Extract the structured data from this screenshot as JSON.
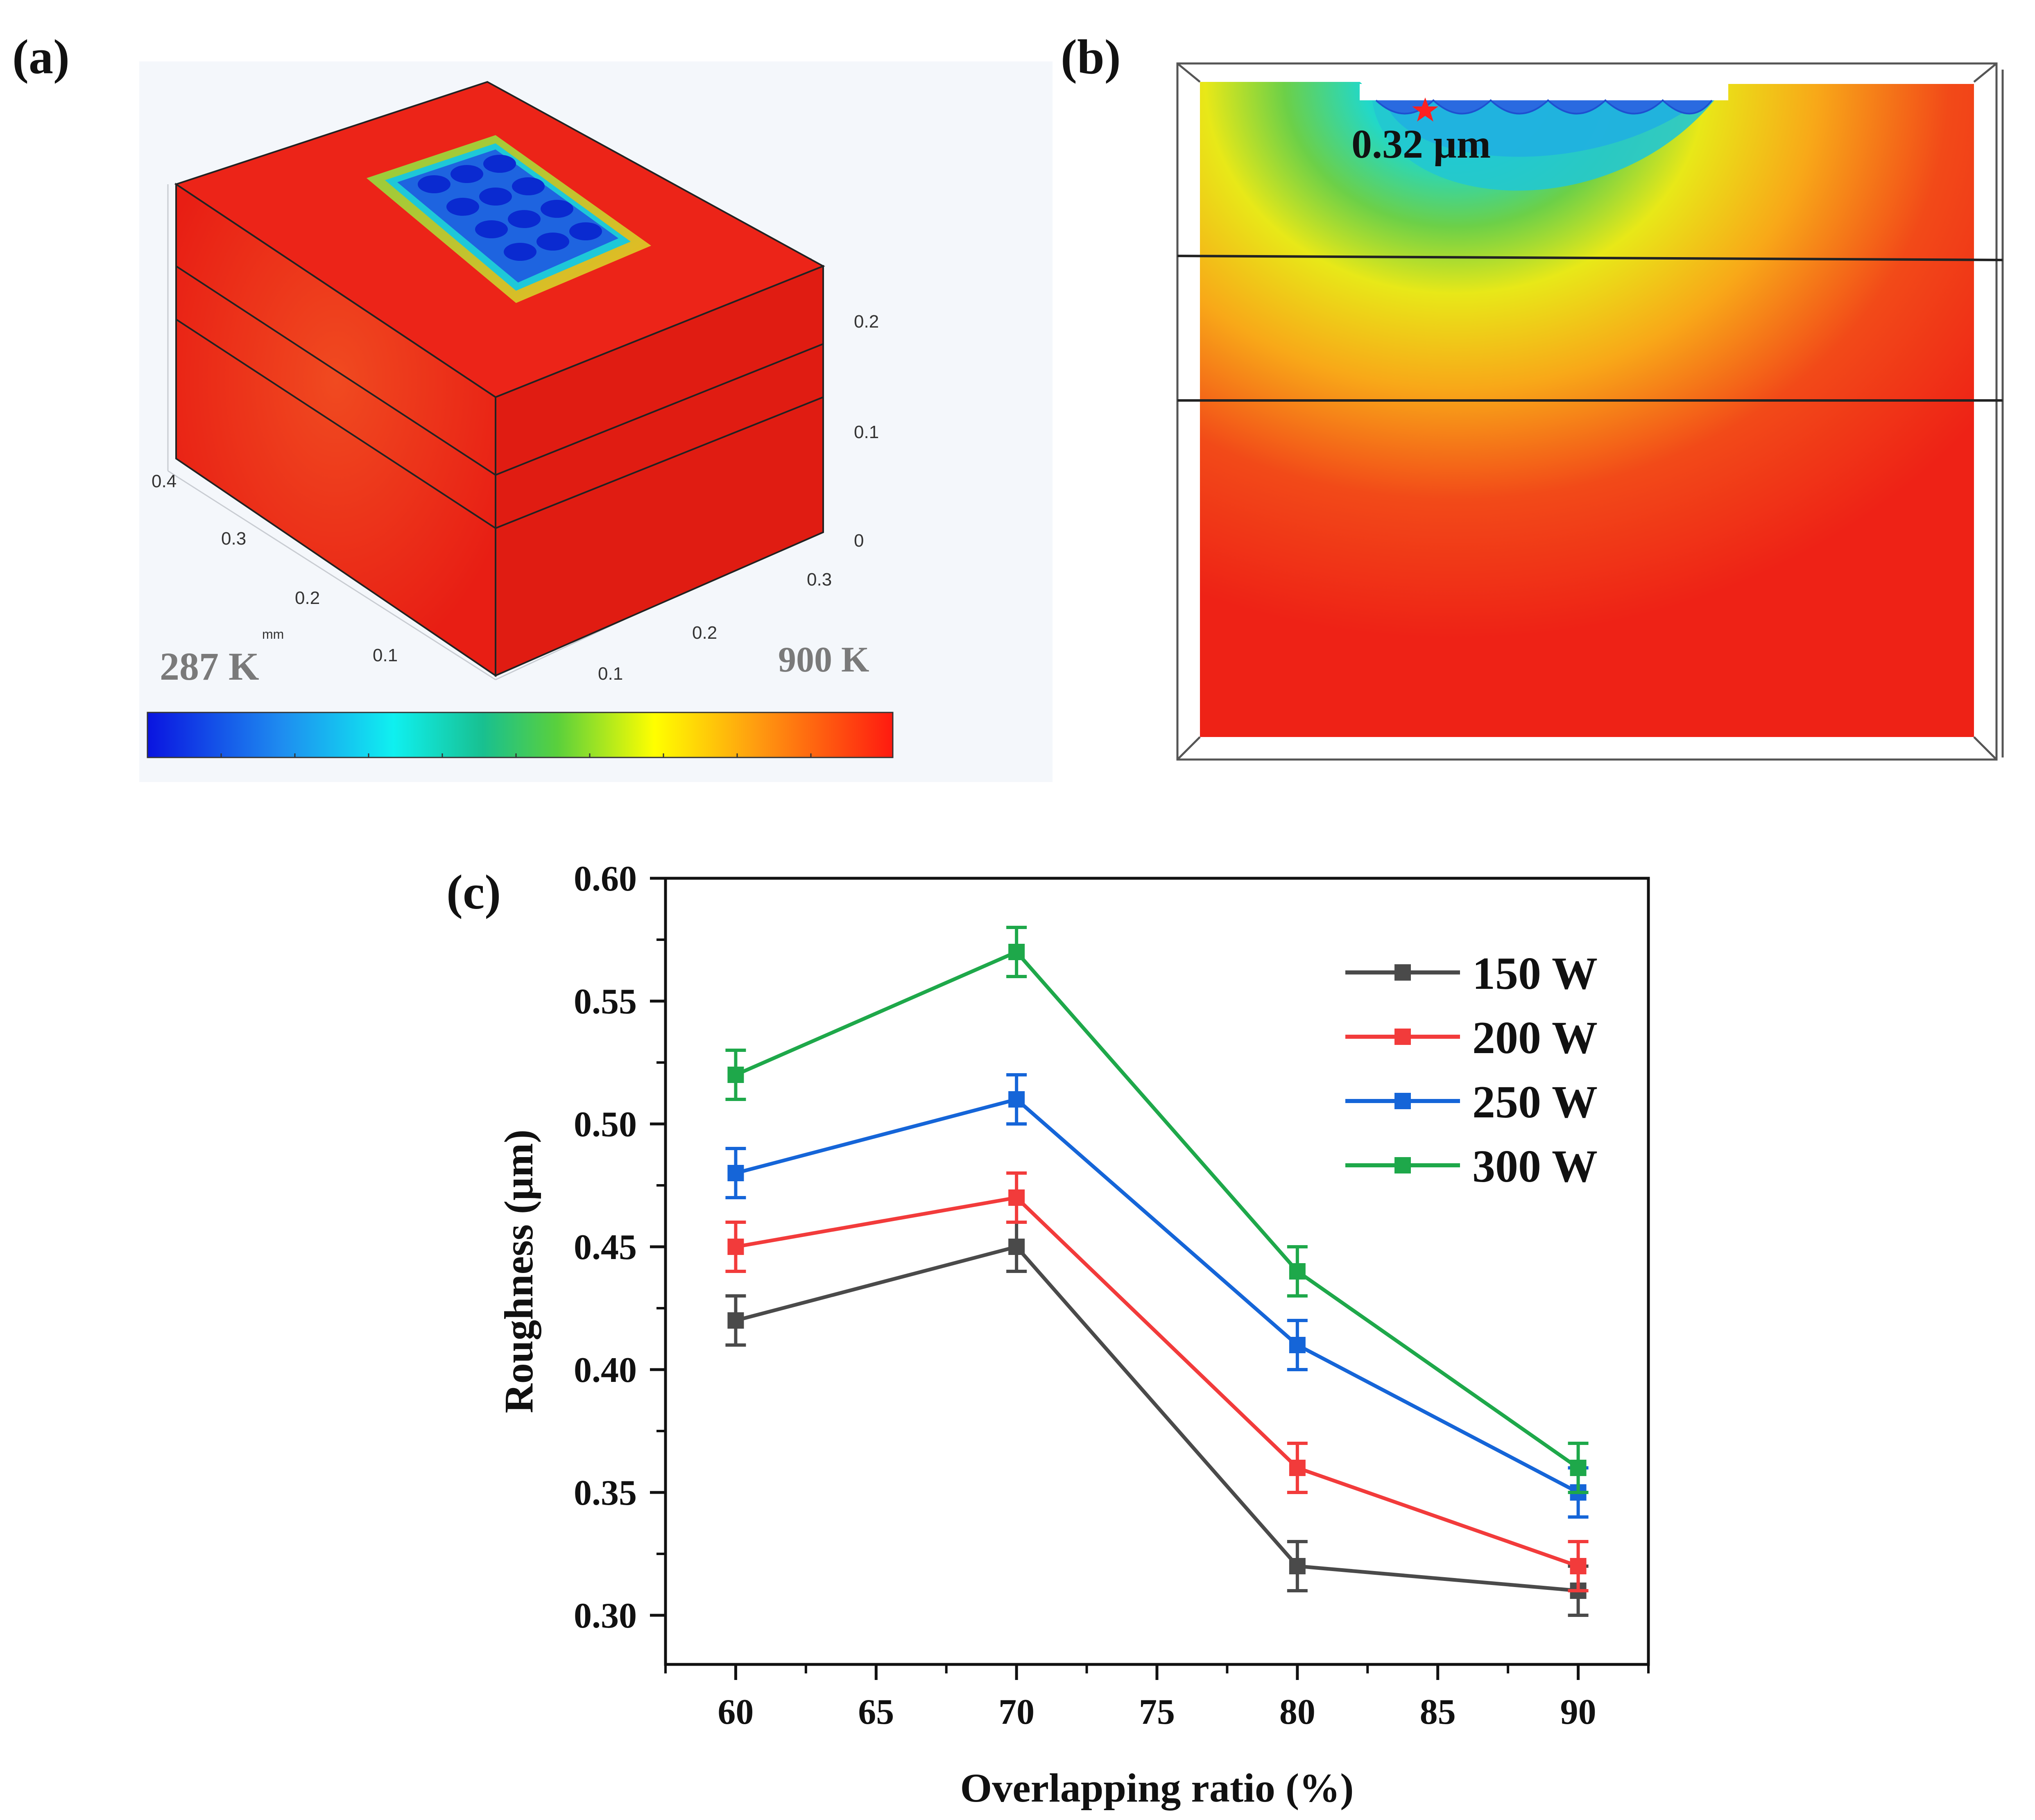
{
  "panels": {
    "a": {
      "letter": "(a)",
      "colorbar_min": "287 K",
      "colorbar_max": "900 K",
      "axis_ticks_left": [
        "0.4",
        "0.3",
        "0.2",
        "0.1"
      ],
      "axis_ticks_right": [
        "0.3",
        "0.2",
        "0.1"
      ],
      "axis_ticks_vertical": [
        "0.2",
        "0.1",
        "0"
      ],
      "axis_unit": "mm"
    },
    "b": {
      "letter": "(b)",
      "annotation": "0.32 μm"
    },
    "c": {
      "letter": "(c)"
    }
  },
  "colors": {
    "hot": "#f0281e",
    "cold": "#0a1ee6",
    "series": [
      "#4a4a4a",
      "#f23b3b",
      "#1565d8",
      "#1ea84a"
    ]
  },
  "chart_data": {
    "type": "line",
    "title": "",
    "xlabel": "Overlapping ratio (%)",
    "ylabel": "Roughness (μm)",
    "x": [
      60,
      70,
      80,
      90
    ],
    "xlim": [
      57.5,
      92.5
    ],
    "ylim": [
      0.28,
      0.6
    ],
    "xticks": [
      60,
      65,
      70,
      75,
      80,
      85,
      90
    ],
    "yticks": [
      0.3,
      0.35,
      0.4,
      0.45,
      0.5,
      0.55,
      0.6
    ],
    "legend_position": "top-right",
    "series": [
      {
        "name": "150 W",
        "values": [
          0.42,
          0.45,
          0.32,
          0.31
        ],
        "errors": [
          0.01,
          0.01,
          0.01,
          0.01
        ]
      },
      {
        "name": "200 W",
        "values": [
          0.45,
          0.47,
          0.36,
          0.32
        ],
        "errors": [
          0.01,
          0.01,
          0.01,
          0.01
        ]
      },
      {
        "name": "250 W",
        "values": [
          0.48,
          0.51,
          0.41,
          0.35
        ],
        "errors": [
          0.01,
          0.01,
          0.01,
          0.01
        ]
      },
      {
        "name": "300 W",
        "values": [
          0.52,
          0.57,
          0.44,
          0.36
        ],
        "errors": [
          0.01,
          0.01,
          0.01,
          0.01
        ]
      }
    ]
  }
}
